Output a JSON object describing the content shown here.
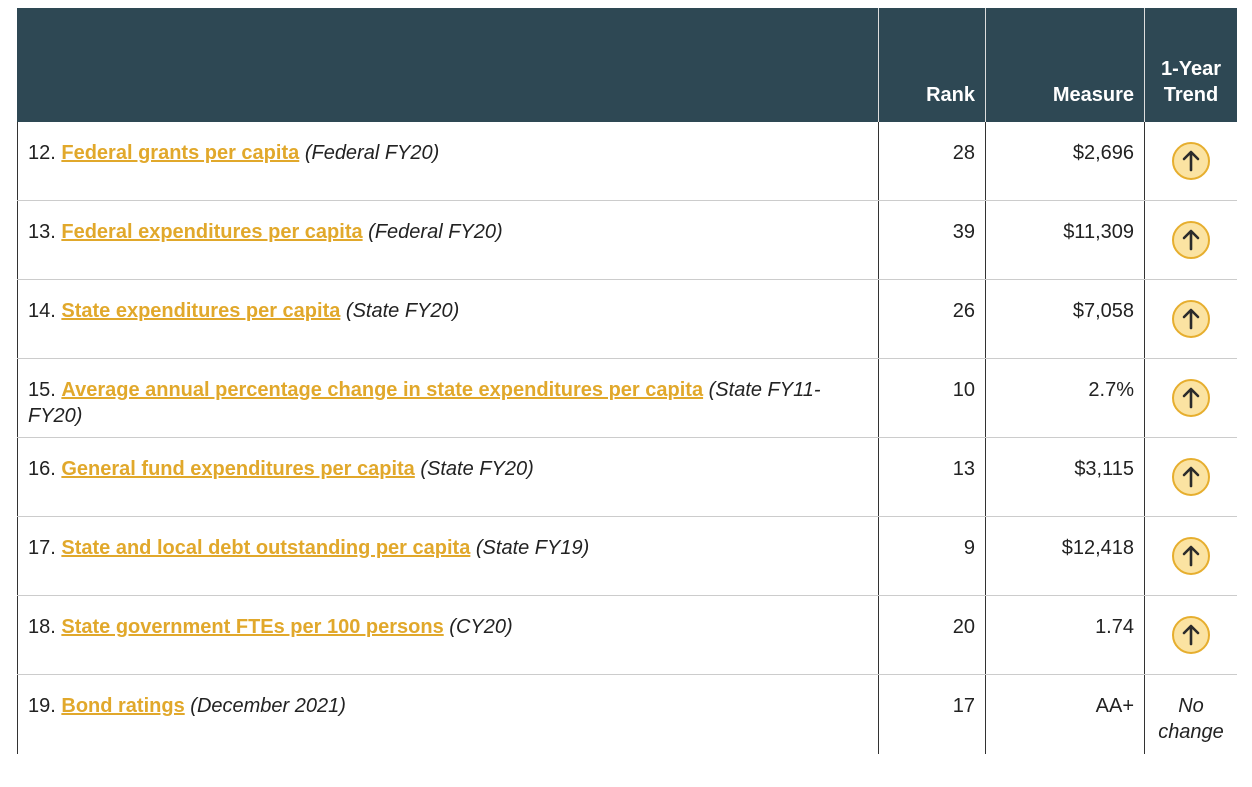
{
  "table": {
    "header": [
      "",
      "Rank",
      "Measure",
      "1-Year Trend"
    ],
    "rows": [
      {
        "num": "12.",
        "link": "Federal grants per capita",
        "note": "(Federal FY20)",
        "rank": "28",
        "measure": "$2,696"
      },
      {
        "num": "13.",
        "link": "Federal expenditures per capita",
        "note": "(Federal FY20)",
        "rank": "39",
        "measure": "$11,309"
      },
      {
        "num": "14.",
        "link": "State expenditures per capita",
        "note": "(State FY20)",
        "rank": "26",
        "measure": "$7,058"
      },
      {
        "num": "15.",
        "link": "Average annual percentage change in state expenditures per capita",
        "note": "(State FY11-FY20)",
        "rank": "10",
        "measure": "2.7%"
      },
      {
        "num": "16.",
        "link": "General fund expenditures per capita",
        "note": "(State FY20)",
        "rank": "13",
        "measure": "$3,115"
      },
      {
        "num": "17.",
        "link": "State and local debt outstanding per capita",
        "note": "(State FY19)",
        "rank": "9",
        "measure": "$12,418"
      },
      {
        "num": "18.",
        "link": "State government FTEs per 100 persons",
        "note": "(CY20)",
        "rank": "20",
        "measure": "1.74"
      },
      {
        "num": "19.",
        "link": "Bond ratings",
        "note": "(December 2021)",
        "rank": "17",
        "measure": "AA+",
        "trend_text": "No change"
      }
    ]
  }
}
